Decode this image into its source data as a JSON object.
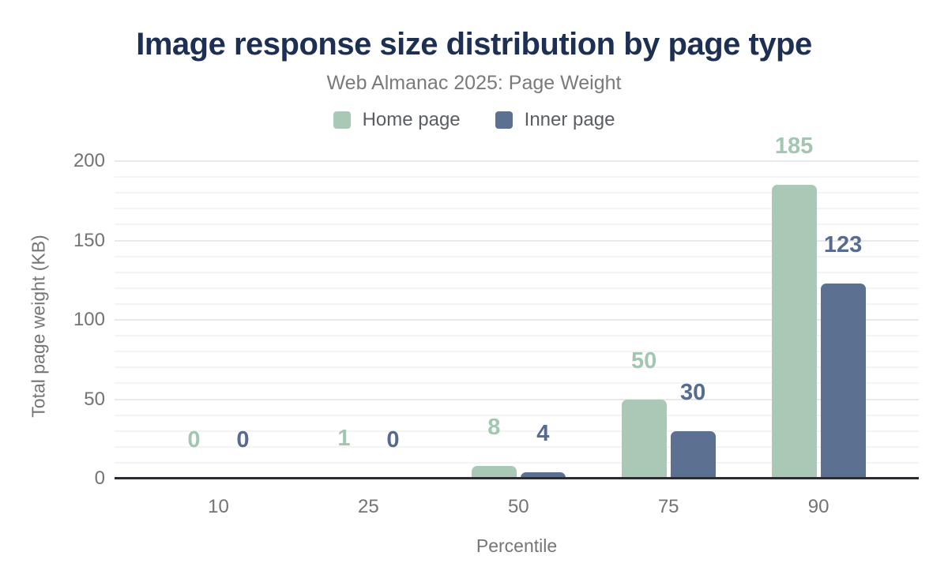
{
  "header": {
    "title": "Image response size distribution by page type",
    "subtitle": "Web Almanac 2025: Page Weight"
  },
  "legend": {
    "items": [
      {
        "label": "Home page",
        "color": "#a9c9b6"
      },
      {
        "label": "Inner page",
        "color": "#5c7092"
      }
    ]
  },
  "chart_data": {
    "type": "bar",
    "categories": [
      "10",
      "25",
      "50",
      "75",
      "90"
    ],
    "series": [
      {
        "name": "Home page",
        "color": "#a9c9b6",
        "label_color": "#a2c6b0",
        "values": [
          0,
          1,
          8,
          50,
          185
        ]
      },
      {
        "name": "Inner page",
        "color": "#5c7092",
        "label_color": "#566b90",
        "values": [
          0,
          0,
          4,
          30,
          123
        ]
      }
    ],
    "title": "Image response size distribution by page type",
    "subtitle": "Web Almanac 2025: Page Weight",
    "xlabel": "Percentile",
    "ylabel": "Total page weight (KB)",
    "ylim": [
      0,
      200
    ],
    "y_major_step": 50,
    "y_minor_step": 10,
    "y_tick_labels": [
      "0",
      "50",
      "100",
      "150",
      "200"
    ],
    "grid": true,
    "legend_position": "top",
    "data_labels": true
  },
  "colors": {
    "title": "#1d2f52",
    "subtitle": "#7a7a7a",
    "axis_text": "#737373",
    "axis_line": "#2b2c30",
    "grid_minor": "#f4f4f4",
    "grid_major": "#e9e9e9",
    "background": "#ffffff"
  }
}
